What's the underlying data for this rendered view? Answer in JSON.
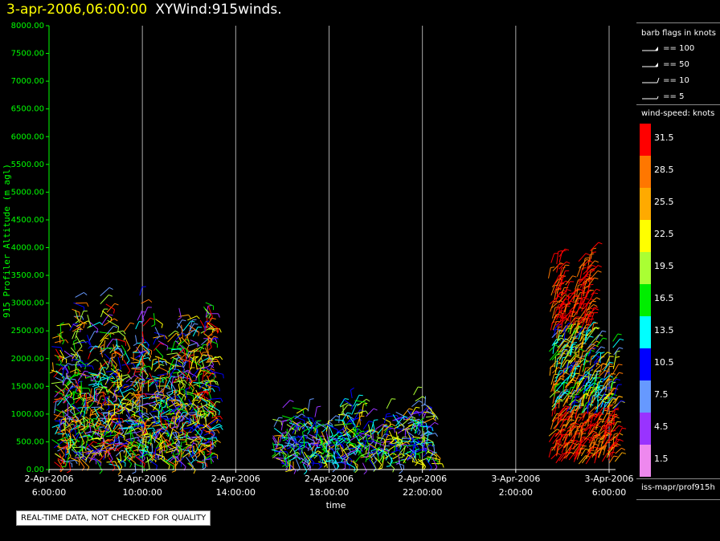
{
  "header": {
    "timestamp": "3-apr-2006,06:00:00",
    "plot_title": "XYWind:915winds."
  },
  "footer": {
    "disclaimer": "REAL-TIME DATA, NOT CHECKED FOR QUALITY"
  },
  "source_label": "iss-mapr/prof915h",
  "legend": {
    "barb_title": "barb flags in knots",
    "barb_items": [
      {
        "label": "== 100",
        "knots": 100
      },
      {
        "label": "== 50",
        "knots": 50
      },
      {
        "label": "== 10",
        "knots": 10
      },
      {
        "label": "== 5",
        "knots": 5
      }
    ],
    "speed_title": "wind-speed: knots",
    "speed_bins": [
      {
        "label": "31.5",
        "color": "#ff0000"
      },
      {
        "label": "28.5",
        "color": "#ff7700"
      },
      {
        "label": "25.5",
        "color": "#ffaa00"
      },
      {
        "label": "22.5",
        "color": "#ffff00"
      },
      {
        "label": "19.5",
        "color": "#aaff33"
      },
      {
        "label": "16.5",
        "color": "#00ee00"
      },
      {
        "label": "13.5",
        "color": "#00ffff"
      },
      {
        "label": "10.5",
        "color": "#0000ff"
      },
      {
        "label": "7.5",
        "color": "#6699ff"
      },
      {
        "label": "4.5",
        "color": "#9933ff"
      },
      {
        "label": "1.5",
        "color": "#ee88ee"
      }
    ]
  },
  "chart_data": {
    "type": "scatter",
    "ylabel": "915 Profiler Altitude (m agl)",
    "xlabel": "time",
    "ylim": [
      0,
      8000
    ],
    "yticks": [
      "0.00",
      "500.00",
      "1000.00",
      "1500.00",
      "2000.00",
      "2500.00",
      "3000.00",
      "3500.00",
      "4000.00",
      "4500.00",
      "5000.00",
      "5500.00",
      "6000.00",
      "6500.00",
      "7000.00",
      "7500.00",
      "8000.00"
    ],
    "xlim": [
      "2-Apr-2006 6:00:00",
      "3-Apr-2006 6:00:00"
    ],
    "xticks": [
      {
        "date": "2-Apr-2006",
        "time": "6:00:00",
        "hours": 0
      },
      {
        "date": "2-Apr-2006",
        "time": "10:00:00",
        "hours": 4
      },
      {
        "date": "2-Apr-2006",
        "time": "14:00:00",
        "hours": 8
      },
      {
        "date": "2-Apr-2006",
        "time": "18:00:00",
        "hours": 12
      },
      {
        "date": "2-Apr-2006",
        "time": "22:00:00",
        "hours": 16
      },
      {
        "date": "3-Apr-2006",
        "time": "2:00:00",
        "hours": 20
      },
      {
        "date": "3-Apr-2006",
        "time": "6:00:00",
        "hours": 24
      }
    ],
    "grid": "vertical",
    "clusters": [
      {
        "hours": [
          0.2,
          7.0
        ],
        "alt": [
          100,
          3300
        ],
        "speed_range": [
          4,
          32
        ]
      },
      {
        "hours": [
          9.5,
          16.5
        ],
        "alt": [
          100,
          1500
        ],
        "speed_range": [
          3,
          25
        ]
      },
      {
        "hours": [
          21.5,
          24.3
        ],
        "alt": [
          100,
          4000
        ],
        "speed_range": [
          10,
          33
        ]
      }
    ]
  }
}
